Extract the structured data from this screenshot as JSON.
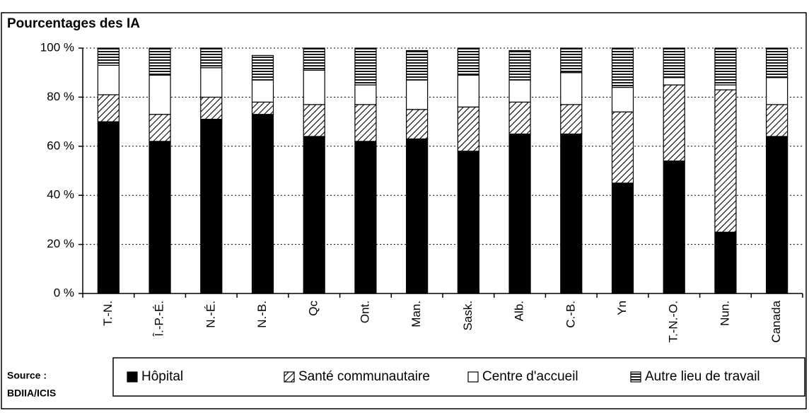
{
  "chart_data": {
    "type": "stacked_bar",
    "title": "Pourcentages des IA",
    "source": [
      "Source :",
      "BDIIA/ICIS"
    ],
    "categories": [
      "T.-N.",
      "Î.-P.-É.",
      "N.-É.",
      "N.-B.",
      "Qc",
      "Ont.",
      "Man.",
      "Sask.",
      "Alb.",
      "C.-B.",
      "Yn",
      "T.-N.-O.",
      "Nun.",
      "Canada"
    ],
    "series": [
      {
        "name": "Hôpital",
        "color": "#000000",
        "pattern": "solid",
        "values": [
          70,
          62,
          71,
          73,
          64,
          62,
          63,
          58,
          65,
          65,
          45,
          54,
          25,
          64
        ]
      },
      {
        "name": "Santé communautaire",
        "color": "#000000",
        "pattern": "diagonal",
        "values": [
          11,
          11,
          9,
          5,
          13,
          15,
          12,
          18,
          13,
          12,
          29,
          31,
          58,
          13
        ]
      },
      {
        "name": "Centre d'accueil",
        "color": "#ffffff",
        "pattern": "solid",
        "values": [
          12,
          16,
          12,
          9,
          14,
          8,
          12,
          13,
          9,
          13,
          10,
          3,
          2,
          11
        ]
      },
      {
        "name": "Autre lieu de travail",
        "color": "#000000",
        "pattern": "horizontal",
        "values": [
          7,
          11,
          8,
          10,
          9,
          15,
          12,
          11,
          12,
          10,
          16,
          12,
          15,
          12
        ]
      }
    ],
    "ylim": [
      0,
      100
    ],
    "yticks": [
      {
        "value": 0,
        "label": "0 %"
      },
      {
        "value": 20,
        "label": "20 %"
      },
      {
        "value": 40,
        "label": "40 %"
      },
      {
        "value": 60,
        "label": "60 %"
      },
      {
        "value": 80,
        "label": "80 %"
      },
      {
        "value": 100,
        "label": "100 %"
      }
    ],
    "grid": true,
    "legend": "bottom"
  }
}
